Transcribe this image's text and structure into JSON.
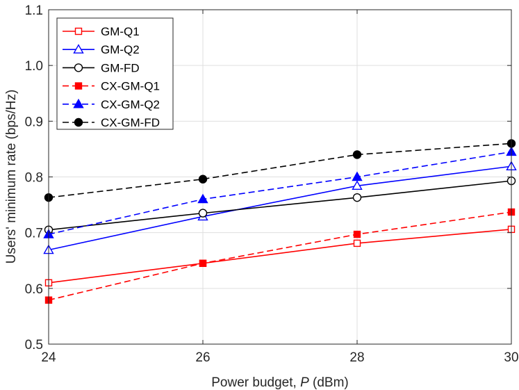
{
  "chart_data": {
    "type": "line",
    "title": "",
    "xlabel_prefix": "Power budget, ",
    "xlabel_var": "P",
    "xlabel_suffix": " (dBm)",
    "ylabel": "Users' minimum rate (bps/Hz)",
    "xlim": [
      24,
      30
    ],
    "ylim": [
      0.5,
      1.1
    ],
    "xticks": [
      24,
      26,
      28,
      30
    ],
    "yticks": [
      0.5,
      0.6,
      0.7,
      0.8,
      0.9,
      1.0,
      1.1
    ],
    "ytick_labels": [
      "0.5",
      "0.6",
      "0.7",
      "0.8",
      "0.9",
      "1.0",
      "1.1"
    ],
    "grid": true,
    "legend_position": "top-left",
    "x": [
      24,
      26,
      28,
      30
    ],
    "series": [
      {
        "name": "GM-Q1",
        "values": [
          0.61,
          0.645,
          0.681,
          0.706
        ],
        "color": "#ff0000",
        "dash": "solid",
        "marker": "square",
        "filled": false
      },
      {
        "name": "GM-Q2",
        "values": [
          0.669,
          0.729,
          0.784,
          0.819
        ],
        "color": "#0000ff",
        "dash": "solid",
        "marker": "triangle",
        "filled": false
      },
      {
        "name": "GM-FD",
        "values": [
          0.705,
          0.735,
          0.763,
          0.793
        ],
        "color": "#000000",
        "dash": "solid",
        "marker": "circle",
        "filled": false
      },
      {
        "name": "CX-GM-Q1",
        "values": [
          0.579,
          0.645,
          0.697,
          0.737
        ],
        "color": "#ff0000",
        "dash": "dashed",
        "marker": "square",
        "filled": true
      },
      {
        "name": "CX-GM-Q2",
        "values": [
          0.697,
          0.76,
          0.8,
          0.845
        ],
        "color": "#0000ff",
        "dash": "dashed",
        "marker": "triangle",
        "filled": true
      },
      {
        "name": "CX-GM-FD",
        "values": [
          0.763,
          0.796,
          0.84,
          0.86
        ],
        "color": "#000000",
        "dash": "dashed",
        "marker": "circle",
        "filled": true
      }
    ]
  }
}
